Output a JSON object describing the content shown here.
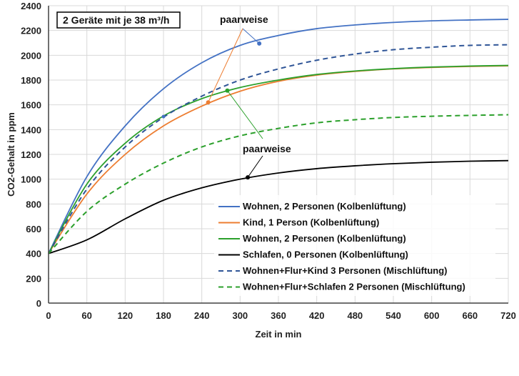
{
  "chart_data": {
    "type": "line",
    "title": "",
    "xlabel": "Zeit in min",
    "ylabel": "CO2-Gehalt in ppm",
    "xlim": [
      0,
      720
    ],
    "ylim": [
      0,
      2400
    ],
    "xticks": [
      0,
      60,
      120,
      180,
      240,
      300,
      360,
      420,
      480,
      540,
      600,
      660,
      720
    ],
    "yticks": [
      0,
      200,
      400,
      600,
      800,
      1000,
      1200,
      1400,
      1600,
      1800,
      2000,
      2200,
      2400
    ],
    "grid": true,
    "legend_position": "bottom-right",
    "box_label": "2 Geräte mit je 38 m³/h",
    "annotations": [
      {
        "text": "paarweise",
        "x": 330,
        "y": 2095
      },
      {
        "text": "paarweise",
        "x": 312,
        "y": 1015
      }
    ],
    "series": [
      {
        "name": "Wohnen, 2 Personen (Kolbenlüftung)",
        "color": "#4472c4",
        "dash": false,
        "x": [
          0,
          60,
          120,
          180,
          240,
          300,
          360,
          420,
          480,
          540,
          600,
          660,
          720
        ],
        "values": [
          400,
          1020,
          1430,
          1730,
          1940,
          2080,
          2160,
          2215,
          2245,
          2265,
          2278,
          2285,
          2290
        ]
      },
      {
        "name": "Kind, 1 Person (Kolbenlüftung)",
        "color": "#ed7d31",
        "dash": false,
        "x": [
          0,
          60,
          120,
          180,
          240,
          300,
          360,
          420,
          480,
          540,
          600,
          660,
          720
        ],
        "values": [
          400,
          880,
          1200,
          1430,
          1590,
          1710,
          1790,
          1840,
          1870,
          1890,
          1902,
          1910,
          1915
        ]
      },
      {
        "name": "Wohnen, 2 Personen (Kolbenlüftung)",
        "color": "#2ca02c",
        "dash": false,
        "x": [
          0,
          60,
          120,
          180,
          240,
          300,
          360,
          420,
          480,
          540,
          600,
          660,
          720
        ],
        "values": [
          400,
          960,
          1290,
          1510,
          1650,
          1740,
          1800,
          1845,
          1873,
          1892,
          1905,
          1913,
          1918
        ]
      },
      {
        "name": "Schlafen, 0 Personen (Kolbenlüftung)",
        "color": "#000000",
        "dash": false,
        "x": [
          0,
          60,
          120,
          180,
          240,
          300,
          360,
          420,
          480,
          540,
          600,
          660,
          720
        ],
        "values": [
          400,
          510,
          680,
          830,
          930,
          1000,
          1050,
          1085,
          1108,
          1125,
          1137,
          1145,
          1150
        ]
      },
      {
        "name": "Wohnen+Flur+Kind 3 Personen (Mischlüftung)",
        "color": "#2f5597",
        "dash": true,
        "x": [
          0,
          60,
          120,
          180,
          240,
          300,
          360,
          420,
          480,
          540,
          600,
          660,
          720
        ],
        "values": [
          400,
          920,
          1260,
          1500,
          1670,
          1800,
          1890,
          1960,
          2010,
          2045,
          2065,
          2080,
          2085
        ]
      },
      {
        "name": "Wohnen+Flur+Schlafen 2 Personen (Mischlüftung)",
        "color": "#2ca02c",
        "dash": true,
        "x": [
          0,
          60,
          120,
          180,
          240,
          300,
          360,
          420,
          480,
          540,
          600,
          660,
          720
        ],
        "values": [
          400,
          740,
          960,
          1130,
          1260,
          1350,
          1410,
          1455,
          1480,
          1498,
          1508,
          1515,
          1520
        ]
      }
    ]
  }
}
